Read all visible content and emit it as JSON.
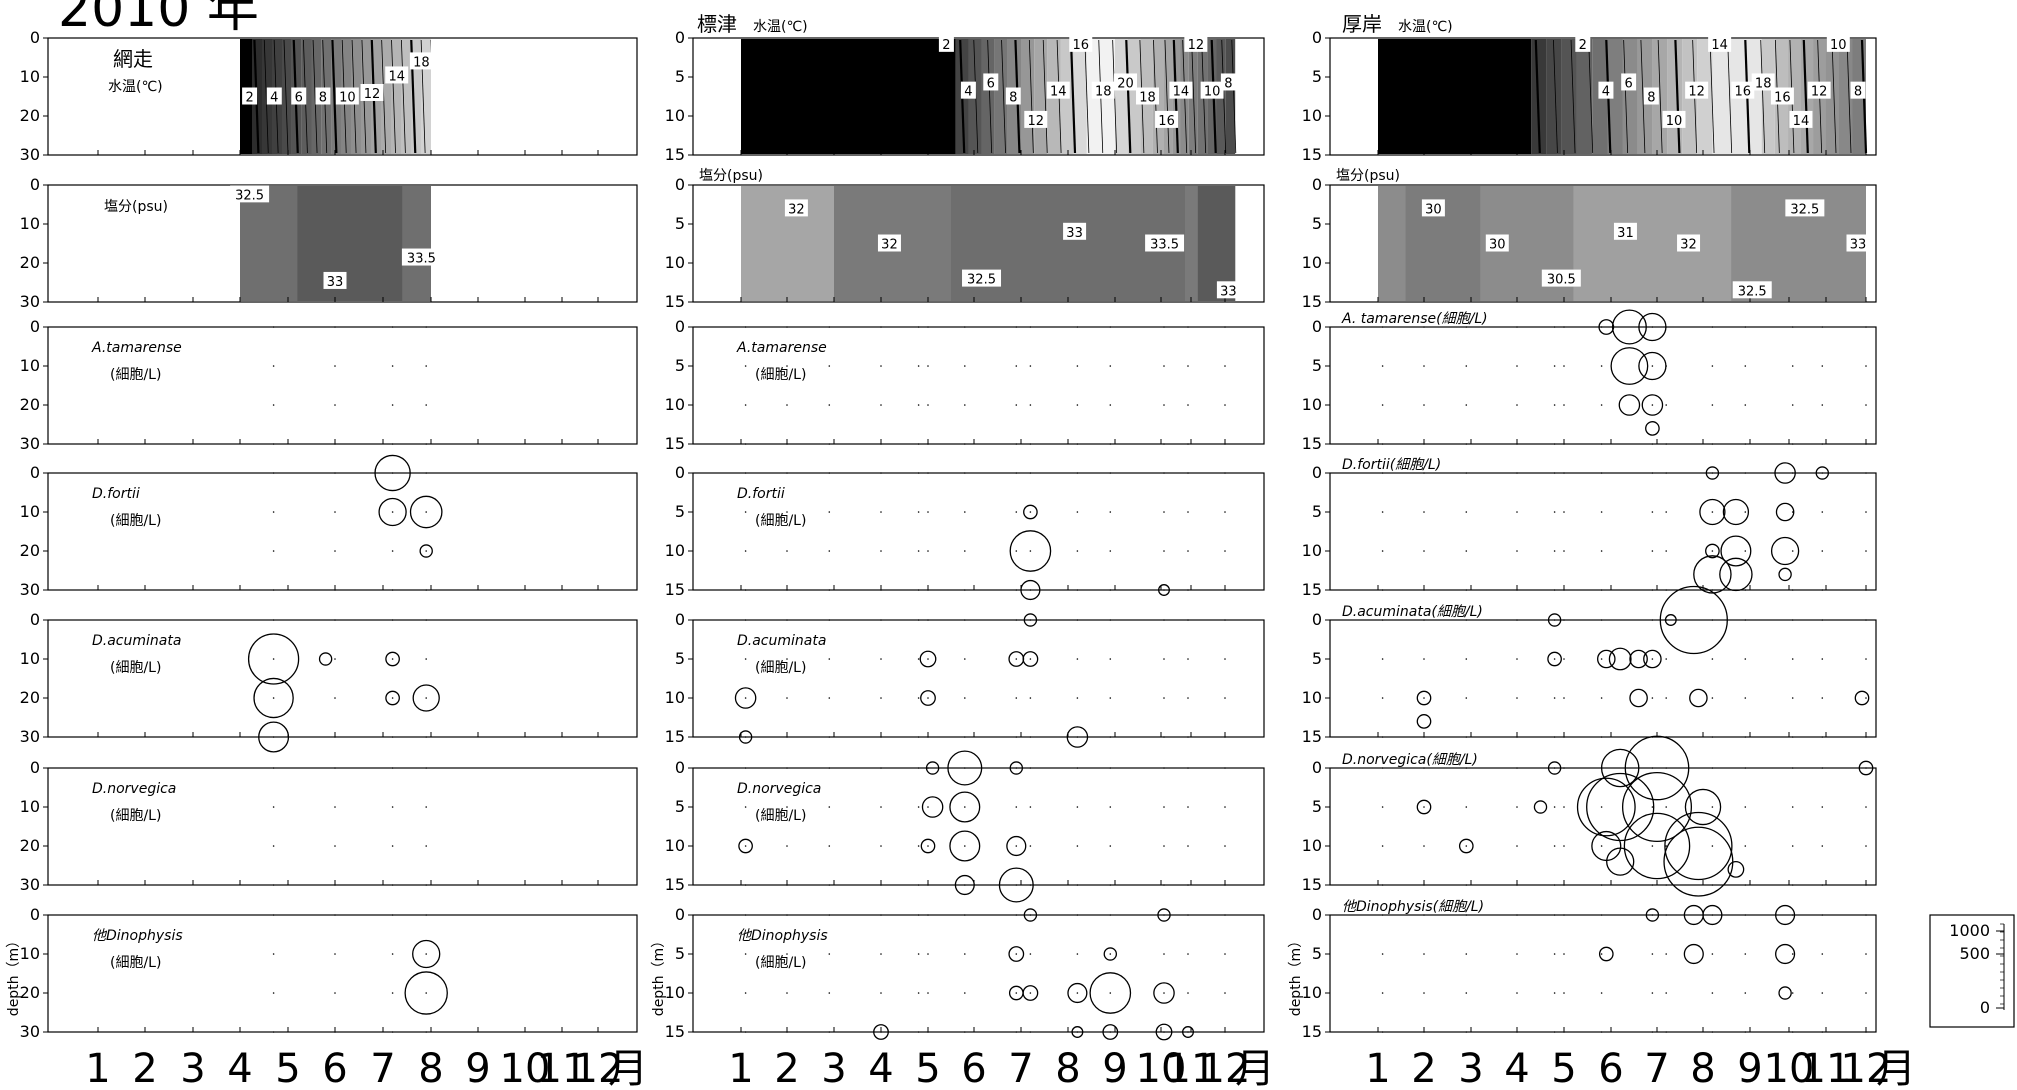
{
  "figure": {
    "year_title": "2010 年",
    "month_suffix": "月",
    "months": [
      "1",
      "2",
      "3",
      "4",
      "5",
      "6",
      "7",
      "8",
      "9",
      "10",
      "11",
      "12"
    ],
    "depth_label": "depth（m）",
    "legend_scale": {
      "ticks": [
        "1000",
        "500",
        "0"
      ],
      "unit": "細胞/L"
    }
  },
  "chart_data": [
    {
      "station": "網走",
      "type": "heatmap",
      "panels": [
        {
          "variable": "水温(℃)",
          "label": "水温(℃)",
          "ylim": [
            0,
            30
          ],
          "yticks": [
            0,
            10,
            20,
            30
          ],
          "coverage_months": [
            4.0,
            8.0
          ],
          "contours": [
            "2",
            "4",
            "6",
            "8",
            "10",
            "12",
            "14",
            "18"
          ]
        },
        {
          "variable": "塩分(psu)",
          "label": "塩分(psu)",
          "ylim": [
            0,
            30
          ],
          "yticks": [
            0,
            10,
            20,
            30
          ],
          "coverage_months": [
            4.0,
            8.0
          ],
          "contours": [
            "32.5",
            "33",
            "33.5"
          ]
        }
      ],
      "species": [
        {
          "name": "A.tamarense",
          "unit": "(細胞/L)",
          "ylim": [
            0,
            30
          ],
          "yticks": [
            0,
            10,
            20,
            30
          ],
          "points": []
        },
        {
          "name": "D.fortii",
          "unit": "(細胞/L)",
          "ylim": [
            0,
            30
          ],
          "yticks": [
            0,
            10,
            20,
            30
          ],
          "points": [
            [
              7.2,
              0,
              220
            ],
            [
              7.2,
              10,
              120
            ],
            [
              7.9,
              10,
              170
            ],
            [
              7.9,
              20,
              15
            ]
          ]
        },
        {
          "name": "D.acuminata",
          "unit": "(細胞/L)",
          "ylim": [
            0,
            30
          ],
          "yticks": [
            0,
            10,
            20,
            30
          ],
          "points": [
            [
              4.7,
              10,
              480
            ],
            [
              5.8,
              10,
              15
            ],
            [
              7.2,
              10,
              20
            ],
            [
              4.7,
              20,
              280
            ],
            [
              7.2,
              20,
              20
            ],
            [
              7.9,
              20,
              110
            ],
            [
              4.7,
              30,
              150
            ]
          ]
        },
        {
          "name": "D.norvegica",
          "unit": "(細胞/L)",
          "ylim": [
            0,
            30
          ],
          "yticks": [
            0,
            10,
            20,
            30
          ],
          "points": []
        },
        {
          "name": "他Dinophysis",
          "unit": "(細胞/L)",
          "ylim": [
            0,
            30
          ],
          "yticks": [
            0,
            10,
            20,
            30
          ],
          "points": [
            [
              7.9,
              10,
              120
            ],
            [
              7.9,
              20,
              330
            ]
          ]
        }
      ]
    },
    {
      "station": "標津",
      "type": "heatmap",
      "panels": [
        {
          "variable": "水温(℃)",
          "label": "水温(℃)",
          "ylim": [
            0,
            15
          ],
          "yticks": [
            0,
            5,
            10,
            15
          ],
          "coverage_months": [
            1.0,
            12.3
          ],
          "contours": [
            "2",
            "4",
            "6",
            "8",
            "12",
            "14",
            "16",
            "18",
            "20",
            "18",
            "16",
            "14",
            "12",
            "10",
            "8"
          ]
        },
        {
          "variable": "塩分(psu)",
          "label": "塩分(psu)",
          "ylim": [
            0,
            15
          ],
          "yticks": [
            0,
            5,
            10,
            15
          ],
          "coverage_months": [
            1.0,
            12.3
          ],
          "contours": [
            "32",
            "32",
            "32.5",
            "33",
            "33.5",
            "33"
          ]
        }
      ],
      "species": [
        {
          "name": "A.tamarense",
          "unit": "(細胞/L)",
          "ylim": [
            0,
            15
          ],
          "yticks": [
            0,
            5,
            10,
            15
          ],
          "points": []
        },
        {
          "name": "D.fortii",
          "unit": "(細胞/L)",
          "ylim": [
            0,
            15
          ],
          "yticks": [
            0,
            5,
            10,
            15
          ],
          "points": [
            [
              7.2,
              5,
              20
            ],
            [
              7.2,
              10,
              300
            ],
            [
              7.2,
              15,
              50
            ],
            [
              10.1,
              15,
              10
            ]
          ]
        },
        {
          "name": "D.acuminata",
          "unit": "(細胞/L)",
          "ylim": [
            0,
            15
          ],
          "yticks": [
            0,
            5,
            10,
            15
          ],
          "points": [
            [
              7.2,
              0,
              15
            ],
            [
              5.0,
              5,
              30
            ],
            [
              6.9,
              5,
              25
            ],
            [
              7.2,
              5,
              25
            ],
            [
              1.1,
              10,
              60
            ],
            [
              5.0,
              10,
              25
            ],
            [
              1.1,
              15,
              15
            ],
            [
              8.2,
              15,
              60
            ]
          ]
        },
        {
          "name": "D.norvegica",
          "unit": "(細胞/L)",
          "ylim": [
            0,
            15
          ],
          "yticks": [
            0,
            5,
            10,
            15
          ],
          "points": [
            [
              5.1,
              0,
              15
            ],
            [
              5.8,
              0,
              200
            ],
            [
              6.9,
              0,
              15
            ],
            [
              5.1,
              5,
              60
            ],
            [
              5.8,
              5,
              150
            ],
            [
              1.1,
              10,
              20
            ],
            [
              5.0,
              10,
              20
            ],
            [
              5.8,
              10,
              150
            ],
            [
              6.9,
              10,
              50
            ],
            [
              5.8,
              15,
              50
            ],
            [
              6.9,
              15,
              200
            ]
          ]
        },
        {
          "name": "他Dinophysis",
          "unit": "(細胞/L)",
          "ylim": [
            0,
            15
          ],
          "yticks": [
            0,
            5,
            10,
            15
          ],
          "points": [
            [
              7.2,
              0,
              15
            ],
            [
              10.1,
              0,
              15
            ],
            [
              6.9,
              5,
              25
            ],
            [
              8.9,
              5,
              15
            ],
            [
              6.9,
              10,
              20
            ],
            [
              7.2,
              10,
              25
            ],
            [
              8.2,
              10,
              50
            ],
            [
              8.9,
              10,
              300
            ],
            [
              10.1,
              10,
              60
            ],
            [
              4.0,
              15,
              25
            ],
            [
              8.2,
              15,
              10
            ],
            [
              8.9,
              15,
              25
            ],
            [
              10.1,
              15,
              30
            ],
            [
              10.9,
              15,
              10
            ]
          ]
        }
      ]
    },
    {
      "station": "厚岸",
      "type": "heatmap",
      "panels": [
        {
          "variable": "水温(℃)",
          "label": "水温(℃)",
          "ylim": [
            0,
            15
          ],
          "yticks": [
            0,
            5,
            10,
            15
          ],
          "coverage_months": [
            1.0,
            12.0
          ],
          "contours": [
            "2",
            "4",
            "6",
            "8",
            "10",
            "12",
            "14",
            "16",
            "18",
            "16",
            "14",
            "12",
            "10",
            "8"
          ]
        },
        {
          "variable": "塩分(psu)",
          "label": "塩分(psu)",
          "ylim": [
            0,
            15
          ],
          "yticks": [
            0,
            5,
            10,
            15
          ],
          "coverage_months": [
            1.0,
            12.0
          ],
          "contours": [
            "30",
            "30",
            "30.5",
            "31",
            "32",
            "32.5",
            "32.5",
            "33"
          ]
        }
      ],
      "species": [
        {
          "name": "A. tamarense",
          "unit": "(細胞/L)",
          "ylim": [
            0,
            15
          ],
          "yticks": [
            0,
            5,
            10,
            15
          ],
          "points": [
            [
              5.9,
              0,
              25
            ],
            [
              6.4,
              0,
              200
            ],
            [
              6.9,
              0,
              120
            ],
            [
              6.4,
              5,
              240
            ],
            [
              6.9,
              5,
              120
            ],
            [
              6.4,
              10,
              60
            ],
            [
              6.9,
              10,
              60
            ],
            [
              6.9,
              13,
              20
            ]
          ]
        },
        {
          "name": "D.fortii",
          "unit": "(細胞/L)",
          "ylim": [
            0,
            15
          ],
          "yticks": [
            0,
            5,
            10,
            15
          ],
          "points": [
            [
              8.2,
              0,
              15
            ],
            [
              9.9,
              0,
              60
            ],
            [
              10.9,
              0,
              15
            ],
            [
              8.2,
              5,
              100
            ],
            [
              8.7,
              5,
              100
            ],
            [
              9.9,
              5,
              40
            ],
            [
              8.2,
              10,
              20
            ],
            [
              8.7,
              10,
              150
            ],
            [
              9.9,
              10,
              120
            ],
            [
              8.2,
              13,
              250
            ],
            [
              8.7,
              13,
              180
            ],
            [
              9.9,
              13,
              15
            ]
          ]
        },
        {
          "name": "D.acuminata",
          "unit": "(細胞/L)",
          "ylim": [
            0,
            15
          ],
          "yticks": [
            0,
            5,
            10,
            15
          ],
          "points": [
            [
              4.8,
              0,
              15
            ],
            [
              7.3,
              0,
              10
            ],
            [
              7.8,
              0,
              900
            ],
            [
              4.8,
              5,
              20
            ],
            [
              5.9,
              5,
              40
            ],
            [
              6.2,
              5,
              70
            ],
            [
              6.6,
              5,
              40
            ],
            [
              6.9,
              5,
              40
            ],
            [
              2.0,
              10,
              20
            ],
            [
              6.6,
              10,
              40
            ],
            [
              7.9,
              10,
              40
            ],
            [
              11.9,
              10,
              20
            ],
            [
              2.0,
              13,
              20
            ]
          ]
        },
        {
          "name": "D.norvegica",
          "unit": "(細胞/L)",
          "ylim": [
            0,
            15
          ],
          "yticks": [
            0,
            5,
            10,
            15
          ],
          "points": [
            [
              4.8,
              0,
              15
            ],
            [
              6.2,
              0,
              250
            ],
            [
              7.0,
              0,
              800
            ],
            [
              12.0,
              0,
              20
            ],
            [
              2.0,
              5,
              20
            ],
            [
              4.5,
              5,
              15
            ],
            [
              5.9,
              5,
              650
            ],
            [
              6.2,
              5,
              900
            ],
            [
              7.0,
              5,
              950
            ],
            [
              8.0,
              5,
              220
            ],
            [
              2.9,
              10,
              20
            ],
            [
              5.9,
              10,
              140
            ],
            [
              7.0,
              10,
              850
            ],
            [
              7.9,
              10,
              900
            ],
            [
              6.2,
              12,
              120
            ],
            [
              7.9,
              12,
              950
            ],
            [
              8.7,
              13,
              30
            ]
          ]
        },
        {
          "name": "他Dinophysis",
          "unit": "(細胞/L)",
          "ylim": [
            0,
            15
          ],
          "yticks": [
            0,
            5,
            10,
            15
          ],
          "points": [
            [
              6.9,
              0,
              15
            ],
            [
              7.8,
              0,
              50
            ],
            [
              8.2,
              0,
              50
            ],
            [
              9.9,
              0,
              50
            ],
            [
              5.9,
              5,
              20
            ],
            [
              7.8,
              5,
              50
            ],
            [
              9.9,
              5,
              50
            ],
            [
              9.9,
              10,
              15
            ]
          ]
        }
      ]
    }
  ]
}
